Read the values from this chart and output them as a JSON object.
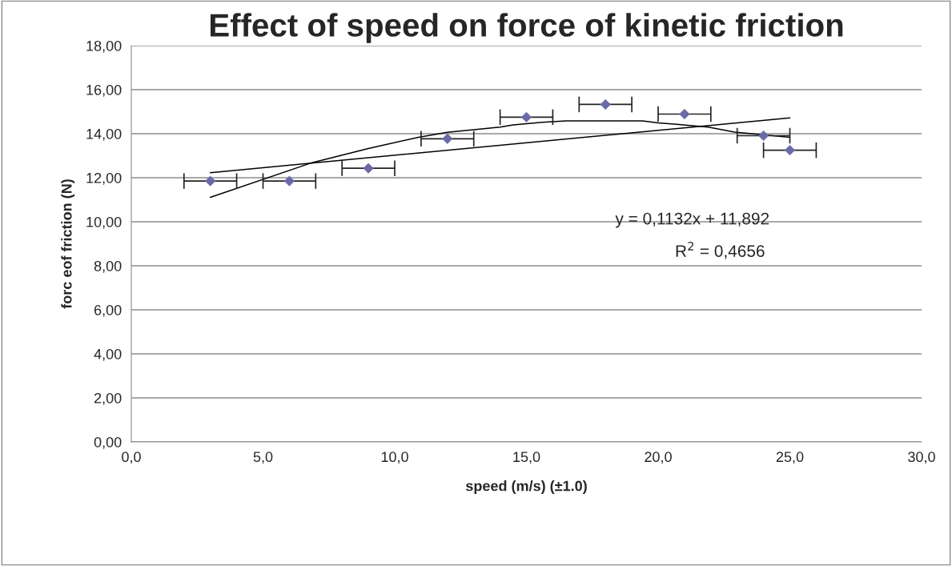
{
  "chart_data": {
    "type": "scatter",
    "title": "Effect of speed on force of kinetic friction",
    "xlabel": "speed (m/s) (±1.0)",
    "ylabel": "forc eof friction (N)",
    "series": [
      {
        "color": "#6a6aa6",
        "marker": "diamond",
        "x": [
          3,
          6,
          9,
          12,
          15,
          18,
          21,
          24,
          25
        ],
        "values": [
          11.85,
          11.85,
          12.43,
          13.77,
          14.75,
          15.33,
          14.89,
          13.91,
          13.25
        ],
        "xerrors": [
          1.0,
          1.0,
          1.0,
          1.0,
          1.0,
          1.0,
          1.0,
          1.0,
          1.0
        ]
      },
      {
        "type": "line",
        "color": "#000000",
        "x": [
          3,
          25
        ],
        "values": [
          12.23,
          14.72
        ]
      },
      {
        "type": "line",
        "color": "#000000",
        "x": [
          3,
          6.8,
          9,
          10.9,
          12,
          14,
          14.5,
          15.6,
          16.5,
          19.4,
          20,
          20.7,
          21.9,
          22.9,
          25
        ],
        "values": [
          11.11,
          12.66,
          13.33,
          13.84,
          14.06,
          14.3,
          14.4,
          14.52,
          14.58,
          14.58,
          14.49,
          14.43,
          14.3,
          14.07,
          13.84
        ]
      }
    ],
    "annotations": [
      "y = 0,1132x + 11,892",
      "R$^{2}$ = 0,4656"
    ],
    "xlim": [
      0,
      30
    ],
    "xticks": [
      {
        "value": 0,
        "label": "0,0"
      },
      {
        "value": 5,
        "label": "5,0"
      },
      {
        "value": 10,
        "label": "10,0"
      },
      {
        "value": 15,
        "label": "15,0"
      },
      {
        "value": 20,
        "label": "20,0"
      },
      {
        "value": 25,
        "label": "25,0"
      },
      {
        "value": 30,
        "label": "30,0"
      }
    ],
    "ylim": [
      0,
      18
    ],
    "yticks": [
      {
        "value": 0,
        "label": "0,00"
      },
      {
        "value": 2,
        "label": "2,00"
      },
      {
        "value": 4,
        "label": "4,00"
      },
      {
        "value": 6,
        "label": "6,00"
      },
      {
        "value": 8,
        "label": "8,00"
      },
      {
        "value": 10,
        "label": "10,00"
      },
      {
        "value": 12,
        "label": "12,00"
      },
      {
        "value": 14,
        "label": "14,00"
      },
      {
        "value": 16,
        "label": "16,00"
      },
      {
        "value": 18,
        "label": "18,00"
      }
    ],
    "grid": "y",
    "legend": false
  }
}
